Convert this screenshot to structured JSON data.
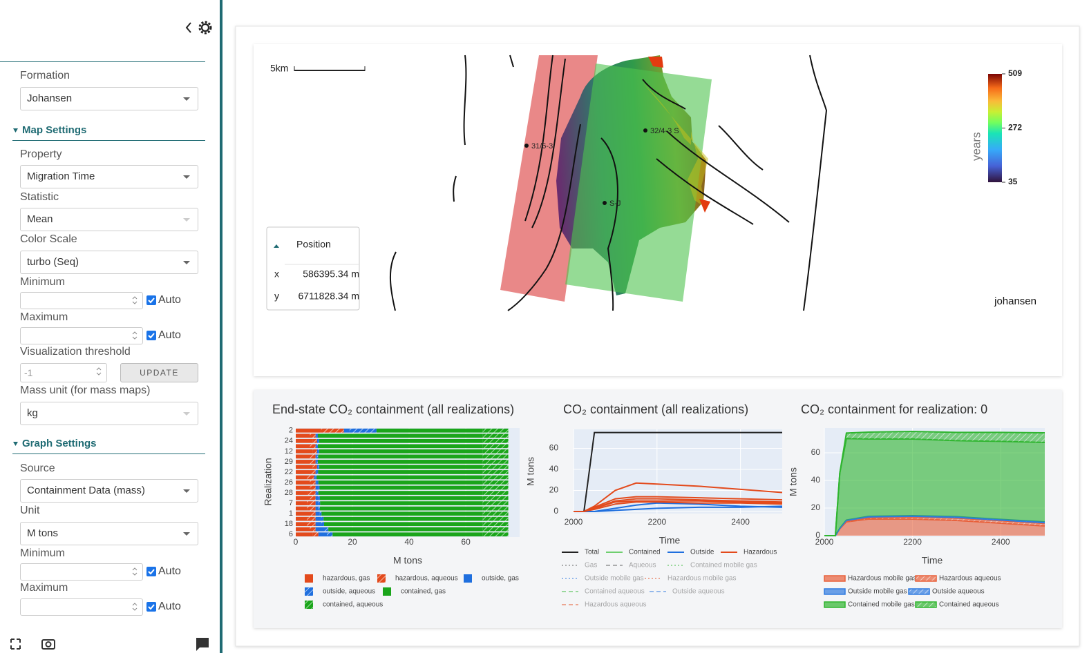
{
  "sidebar": {
    "formation": {
      "label": "Formation",
      "value": "Johansen"
    },
    "map_settings": {
      "title": "Map Settings",
      "property": {
        "label": "Property",
        "value": "Migration Time"
      },
      "statistic": {
        "label": "Statistic",
        "value": "Mean"
      },
      "color_scale": {
        "label": "Color Scale",
        "value": "turbo (Seq)"
      },
      "minimum": {
        "label": "Minimum",
        "auto": "Auto"
      },
      "maximum": {
        "label": "Maximum",
        "auto": "Auto"
      },
      "threshold": {
        "label": "Visualization threshold",
        "value": "-1",
        "button": "UPDATE"
      },
      "mass_unit": {
        "label": "Mass unit (for mass maps)",
        "value": "kg"
      }
    },
    "graph_settings": {
      "title": "Graph Settings",
      "source": {
        "label": "Source",
        "value": "Containment Data (mass)"
      },
      "unit": {
        "label": "Unit",
        "value": "M tons"
      },
      "minimum": {
        "label": "Minimum",
        "auto": "Auto"
      },
      "maximum": {
        "label": "Maximum",
        "auto": "Auto"
      }
    }
  },
  "map": {
    "scale_bar": "5km",
    "layer": "johansen",
    "wells": [
      "31/6-3",
      "32/4-3 S",
      "S-J"
    ],
    "colorbar": {
      "title": "years",
      "lim": [
        35,
        509
      ],
      "ticks": [
        35,
        272,
        509
      ]
    },
    "position": {
      "title": "Position",
      "x_label": "x",
      "x": "586395.34 m",
      "y_label": "y",
      "y": "6711828.34 m"
    }
  },
  "chart_data": [
    {
      "type": "bar",
      "orientation": "horizontal",
      "stacked": true,
      "title": "End-state CO₂ containment (all realizations)",
      "x_label": "M tons",
      "y_label": "Realization",
      "xlim": [
        0,
        79
      ],
      "xticks": [
        0,
        20,
        40,
        60
      ],
      "categories": [
        "2",
        null,
        "24",
        null,
        "12",
        null,
        "29",
        null,
        "22",
        null,
        "26",
        null,
        "28",
        null,
        "7",
        null,
        "1",
        null,
        "18",
        null,
        "6"
      ],
      "series": [
        {
          "name": "hazardous, gas",
          "color": "#e34a1c",
          "pattern": false,
          "values": [
            9,
            5,
            6,
            5,
            6,
            5,
            5,
            6,
            5,
            4,
            5,
            5,
            4,
            5,
            4,
            4,
            5,
            4,
            4,
            5,
            6
          ]
        },
        {
          "name": "hazardous, aqueous",
          "color": "#e34a1c",
          "pattern": true,
          "values": [
            8,
            2,
            1.5,
            2,
            1.5,
            2,
            2,
            1.5,
            2,
            2.5,
            2,
            2,
            3,
            2,
            3,
            3,
            2,
            3,
            3,
            2,
            2
          ]
        },
        {
          "name": "outside, gas",
          "color": "#1f6fde",
          "pattern": false,
          "values": [
            2,
            0.5,
            0.5,
            0.5,
            0.5,
            0.5,
            0.5,
            0.5,
            0.5,
            0.5,
            0.5,
            1,
            0.5,
            1,
            1,
            1,
            1.5,
            2,
            2,
            3,
            3
          ]
        },
        {
          "name": "outside, aqueous",
          "color": "#1f6fde",
          "pattern": true,
          "values": [
            9.5,
            0.3,
            0.3,
            0.3,
            0.3,
            0.4,
            0.3,
            0.3,
            0.4,
            0.4,
            0.5,
            0.4,
            0.5,
            0.5,
            0.6,
            0.5,
            0.6,
            0.8,
            1,
            1.5,
            2
          ]
        },
        {
          "name": "contained, gas",
          "color": "#1aa51a",
          "pattern": false,
          "values": [
            37.5,
            58.2,
            57.7,
            58.2,
            57.7,
            58.1,
            58.2,
            57.7,
            58.1,
            58.6,
            58,
            57.6,
            58,
            57.5,
            57.4,
            57.5,
            56.9,
            56.2,
            56,
            54.5,
            53
          ]
        },
        {
          "name": "contained, aqueous",
          "color": "#1aa51a",
          "pattern": true,
          "values": [
            9,
            9,
            9,
            9,
            9,
            9,
            9,
            9,
            9,
            9,
            9,
            9,
            9,
            9,
            9,
            9,
            9,
            9,
            9,
            9,
            9
          ]
        }
      ]
    },
    {
      "type": "line",
      "title": "CO₂ containment (all realizations)",
      "x_label": "Time",
      "y_label": "M tons",
      "xlim": [
        2000,
        2500
      ],
      "xticks": [
        2000,
        2200,
        2400
      ],
      "ylim": [
        -2,
        78
      ],
      "yticks": [
        0,
        20,
        40,
        60
      ],
      "x": [
        2000,
        2025,
        2050,
        2100,
        2150,
        2200,
        2300,
        2400,
        2500
      ],
      "series": [
        {
          "name": "Total",
          "color": "#222222",
          "dash": "solid",
          "visible": true,
          "values": [
            [
              0,
              0,
              75,
              75,
              75,
              75,
              75,
              75,
              75
            ]
          ]
        },
        {
          "name": "Contained",
          "color": "#6fcf6f",
          "dash": "solid",
          "visible": true
        },
        {
          "name": "Outside",
          "color": "#1f6fde",
          "dash": "solid",
          "visible": true,
          "values": [
            [
              0,
              0,
              0,
              3,
              6,
              8,
              7,
              5,
              4
            ],
            [
              0,
              0,
              0,
              1,
              2,
              3,
              4,
              4,
              5
            ]
          ]
        },
        {
          "name": "Hazardous",
          "color": "#e34a1c",
          "dash": "solid",
          "visible": true,
          "values": [
            [
              0,
              0,
              5,
              20,
              27,
              26,
              24,
              21,
              18
            ],
            [
              0,
              0,
              4,
              12,
              14,
              14,
              13,
              12,
              11
            ],
            [
              0,
              0,
              3,
              10,
              12,
              12,
              11,
              10,
              9
            ],
            [
              0,
              0,
              3,
              9,
              10,
              10,
              10,
              9,
              8
            ],
            [
              0,
              0,
              2,
              7,
              9,
              9,
              8,
              8,
              7
            ]
          ]
        },
        {
          "name": "Gas",
          "color": "#555555",
          "dash": "dot",
          "visible": false
        },
        {
          "name": "Aqueous",
          "color": "#555555",
          "dash": "dash",
          "visible": false
        },
        {
          "name": "Contained mobile gas",
          "color": "#2fb52f",
          "dash": "dot",
          "visible": false
        },
        {
          "name": "Outside mobile gas",
          "color": "#1f6fde",
          "dash": "dot",
          "visible": false
        },
        {
          "name": "Hazardous mobile gas",
          "color": "#e34a1c",
          "dash": "dot",
          "visible": false
        },
        {
          "name": "Contained aqueous",
          "color": "#2fb52f",
          "dash": "dash",
          "visible": false
        },
        {
          "name": "Outside aqueous",
          "color": "#1f6fde",
          "dash": "dash",
          "visible": false
        },
        {
          "name": "Hazardous aqueous",
          "color": "#e34a1c",
          "dash": "dash",
          "visible": false
        }
      ]
    },
    {
      "type": "area",
      "stacked": true,
      "title": "CO₂ containment for realization: 0",
      "x_label": "Time",
      "y_label": "M tons",
      "xlim": [
        2000,
        2500
      ],
      "xticks": [
        2000,
        2200,
        2400
      ],
      "ylim": [
        -1,
        78
      ],
      "yticks": [
        0,
        20,
        40,
        60
      ],
      "x": [
        2000,
        2025,
        2035,
        2050,
        2100,
        2200,
        2300,
        2400,
        2500
      ],
      "series": [
        {
          "name": "Hazardous mobile gas",
          "color": "#e8603a",
          "pattern": false,
          "values": [
            0,
            0,
            5,
            10,
            12,
            12,
            11,
            9,
            7
          ]
        },
        {
          "name": "Hazardous aqueous",
          "color": "#e8603a",
          "pattern": true,
          "values": [
            0,
            0,
            0,
            0.5,
            1,
            1.5,
            1.7,
            1.8,
            1.9
          ]
        },
        {
          "name": "Outside mobile gas",
          "color": "#2f7be0",
          "pattern": false,
          "values": [
            0,
            0,
            0.3,
            0.6,
            0.7,
            0.6,
            0.6,
            0.5,
            0.5
          ]
        },
        {
          "name": "Outside aqueous",
          "color": "#2f7be0",
          "pattern": true,
          "values": [
            0,
            0,
            0,
            0.2,
            0.3,
            0.4,
            0.5,
            0.5,
            0.6
          ]
        },
        {
          "name": "Contained mobile gas",
          "color": "#2fb52f",
          "pattern": false,
          "values": [
            0,
            0,
            40,
            59,
            56,
            55.5,
            55,
            56.5,
            57.5
          ]
        },
        {
          "name": "Contained aqueous",
          "color": "#2fb52f",
          "pattern": true,
          "values": [
            0,
            0,
            0,
            4,
            5,
            5.5,
            6,
            6.5,
            7
          ]
        }
      ]
    }
  ]
}
